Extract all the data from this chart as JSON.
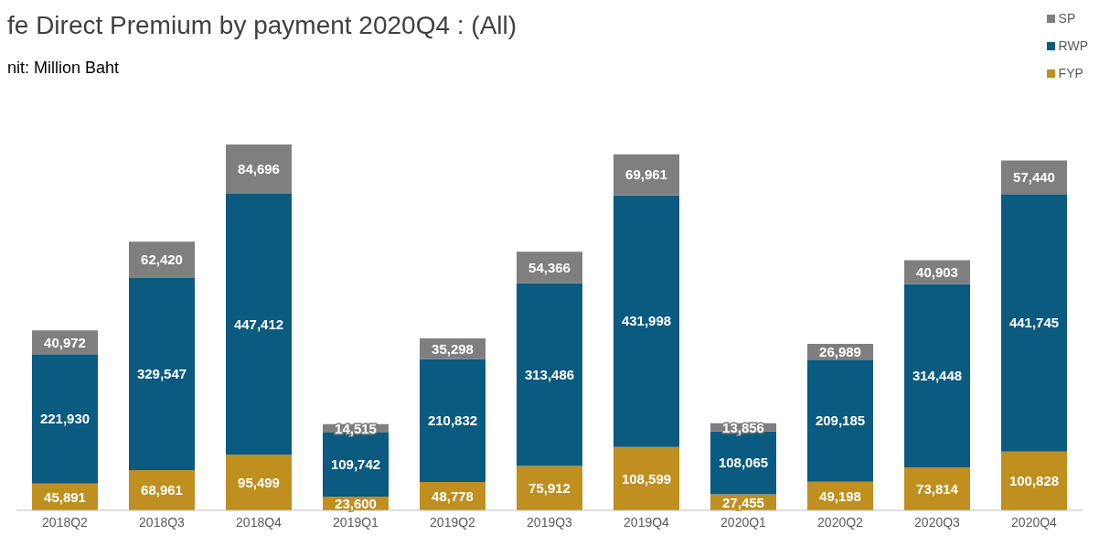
{
  "chart_data": {
    "type": "bar",
    "title": "fe Direct Premium by payment 2020Q4 : (All)",
    "subtitle": "nit: Million Baht",
    "categories": [
      "2018Q2",
      "2018Q3",
      "2018Q4",
      "2019Q1",
      "2019Q2",
      "2019Q3",
      "2019Q4",
      "2020Q1",
      "2020Q2",
      "2020Q3",
      "2020Q4"
    ],
    "stacked": true,
    "legend": "top right",
    "grid": false,
    "series": [
      {
        "name": "FYP",
        "color": "#bf8f1f",
        "values": [
          45891,
          68961,
          95499,
          23600,
          48778,
          75912,
          108599,
          27455,
          49198,
          73814,
          100828
        ],
        "value_labels": [
          "45,891",
          "68,961",
          "95,499",
          "23,600",
          "48,778",
          "75,912",
          "108,599",
          "27,455",
          "49,198",
          "73,814",
          "100,828"
        ]
      },
      {
        "name": "RWP",
        "color": "#0b5a80",
        "values": [
          221930,
          329547,
          447412,
          109742,
          210832,
          313486,
          431998,
          108065,
          209185,
          314448,
          441745
        ],
        "value_labels": [
          "221,930",
          "329,547",
          "447,412",
          "109,742",
          "210,832",
          "313,486",
          "431,998",
          "108,065",
          "209,185",
          "314,448",
          "441,745"
        ]
      },
      {
        "name": "SP",
        "color": "#7f7f7f",
        "values": [
          40972,
          62420,
          84696,
          14515,
          35298,
          54366,
          69961,
          13856,
          26989,
          40903,
          57440
        ],
        "value_labels": [
          "40,972",
          "62,420",
          "84,696",
          "14,515",
          "35,298",
          "54,366",
          "69,961",
          "13,856",
          "26,989",
          "40,903",
          "57,440"
        ]
      }
    ]
  }
}
